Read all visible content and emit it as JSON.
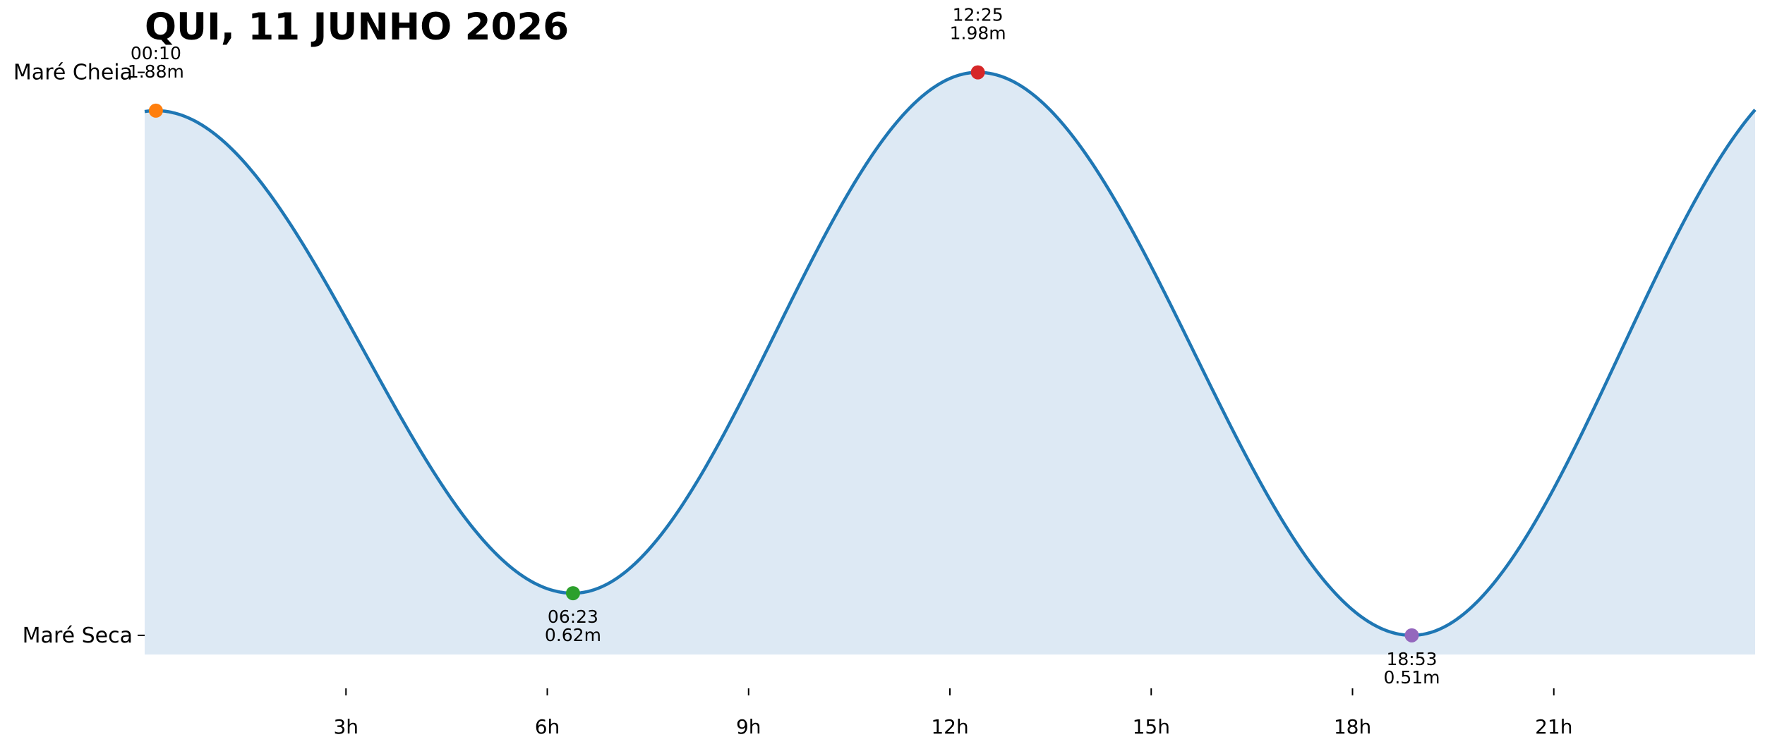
{
  "chart_data": {
    "type": "area",
    "title": "QUI, 11 JUNHO 2026",
    "xlabel": "",
    "ylabel": "",
    "xlim": [
      0,
      24
    ],
    "ylim": [
      0.46,
      2.04
    ],
    "x_unit": "hours",
    "x_ticks": [
      {
        "value": 3,
        "label": "3h"
      },
      {
        "value": 6,
        "label": "6h"
      },
      {
        "value": 9,
        "label": "9h"
      },
      {
        "value": 12,
        "label": "12h"
      },
      {
        "value": 15,
        "label": "15h"
      },
      {
        "value": 18,
        "label": "18h"
      },
      {
        "value": 21,
        "label": "21h"
      }
    ],
    "y_ticks": [
      {
        "value": 1.98,
        "label": "Maré Cheia"
      },
      {
        "value": 0.51,
        "label": "Maré Seca"
      }
    ],
    "extremes": [
      {
        "hour": 0.1667,
        "time": "00:10",
        "height": 1.88,
        "label": "1.88m",
        "kind": "high",
        "color": "#ff7f0e"
      },
      {
        "hour": 6.3833,
        "time": "06:23",
        "height": 0.62,
        "label": "0.62m",
        "kind": "low",
        "color": "#2ca02c"
      },
      {
        "hour": 12.4167,
        "time": "12:25",
        "height": 1.98,
        "label": "1.98m",
        "kind": "high",
        "color": "#d62728"
      },
      {
        "hour": 18.8833,
        "time": "18:53",
        "height": 0.51,
        "label": "0.51m",
        "kind": "low",
        "color": "#9467bd"
      }
    ],
    "end_value": {
      "hour": 24,
      "height": 1.87
    },
    "grid": false,
    "line_color": "#1f77b4",
    "fill_color": "#dde9f4"
  }
}
